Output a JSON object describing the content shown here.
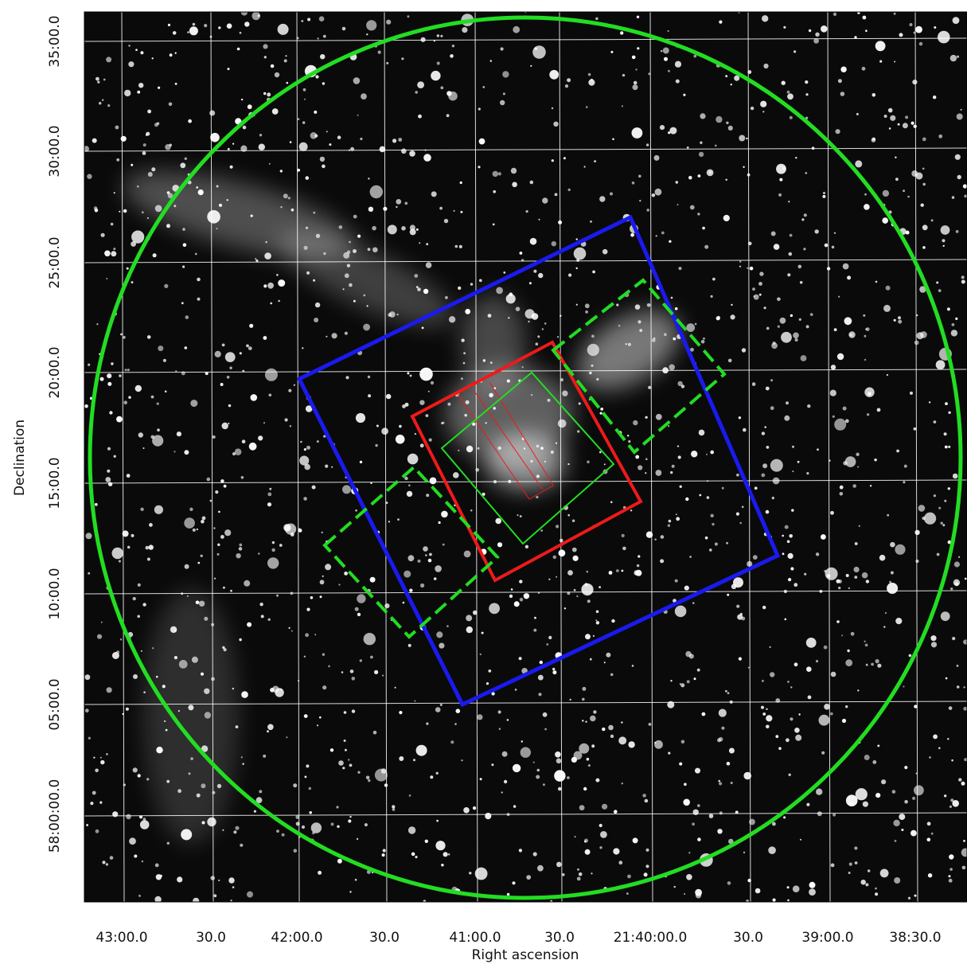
{
  "x_axis": {
    "label": "Right ascension",
    "ticks": [
      "43:00.0",
      "30.0",
      "42:00.0",
      "30.0",
      "41:00.0",
      "30.0",
      "21:40:00.0",
      "30.0",
      "39:00.0",
      "38:30.0"
    ]
  },
  "y_axis": {
    "label": "Declination",
    "ticks": [
      "35:00.0",
      "30:00.0",
      "25:00.0",
      "20:00.0",
      "15:00.0",
      "10:00.0",
      "05:00.0",
      "58:00:00.0"
    ]
  }
}
